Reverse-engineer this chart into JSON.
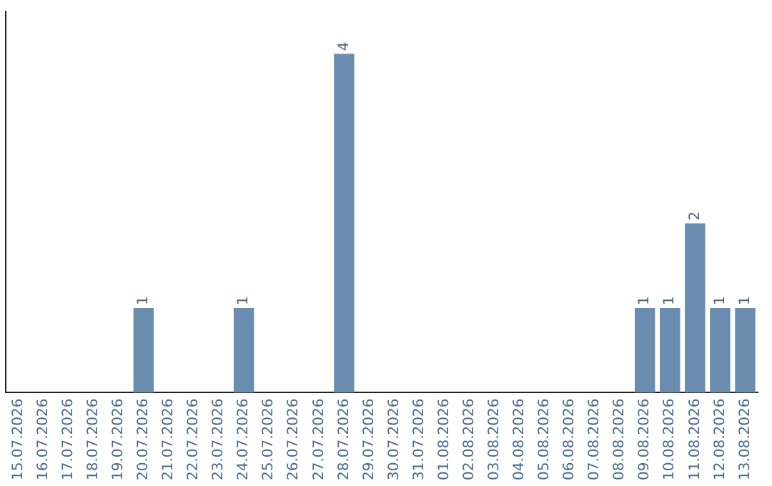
{
  "chart_data": {
    "type": "bar",
    "categories": [
      "15.07.2026",
      "16.07.2026",
      "17.07.2026",
      "18.07.2026",
      "19.07.2026",
      "20.07.2026",
      "21.07.2026",
      "22.07.2026",
      "23.07.2026",
      "24.07.2026",
      "25.07.2026",
      "26.07.2026",
      "27.07.2026",
      "28.07.2026",
      "29.07.2026",
      "30.07.2026",
      "31.07.2026",
      "01.08.2026",
      "02.08.2026",
      "03.08.2026",
      "04.08.2026",
      "05.08.2026",
      "06.08.2026",
      "07.08.2026",
      "08.08.2026",
      "09.08.2026",
      "10.08.2026",
      "11.08.2026",
      "12.08.2026",
      "13.08.2026"
    ],
    "values": [
      0,
      0,
      0,
      0,
      0,
      1,
      0,
      0,
      0,
      1,
      0,
      0,
      0,
      4,
      0,
      0,
      0,
      0,
      0,
      0,
      0,
      0,
      0,
      0,
      0,
      1,
      1,
      2,
      1,
      1
    ],
    "value_labels": [
      null,
      null,
      null,
      null,
      null,
      "1",
      null,
      null,
      null,
      "1",
      null,
      null,
      null,
      "4",
      null,
      null,
      null,
      null,
      null,
      null,
      null,
      null,
      null,
      null,
      null,
      "1",
      "1",
      "2",
      "1",
      "1"
    ],
    "color": "#6a8caf",
    "grid": false,
    "legend": false,
    "tick_labels": "x"
  }
}
